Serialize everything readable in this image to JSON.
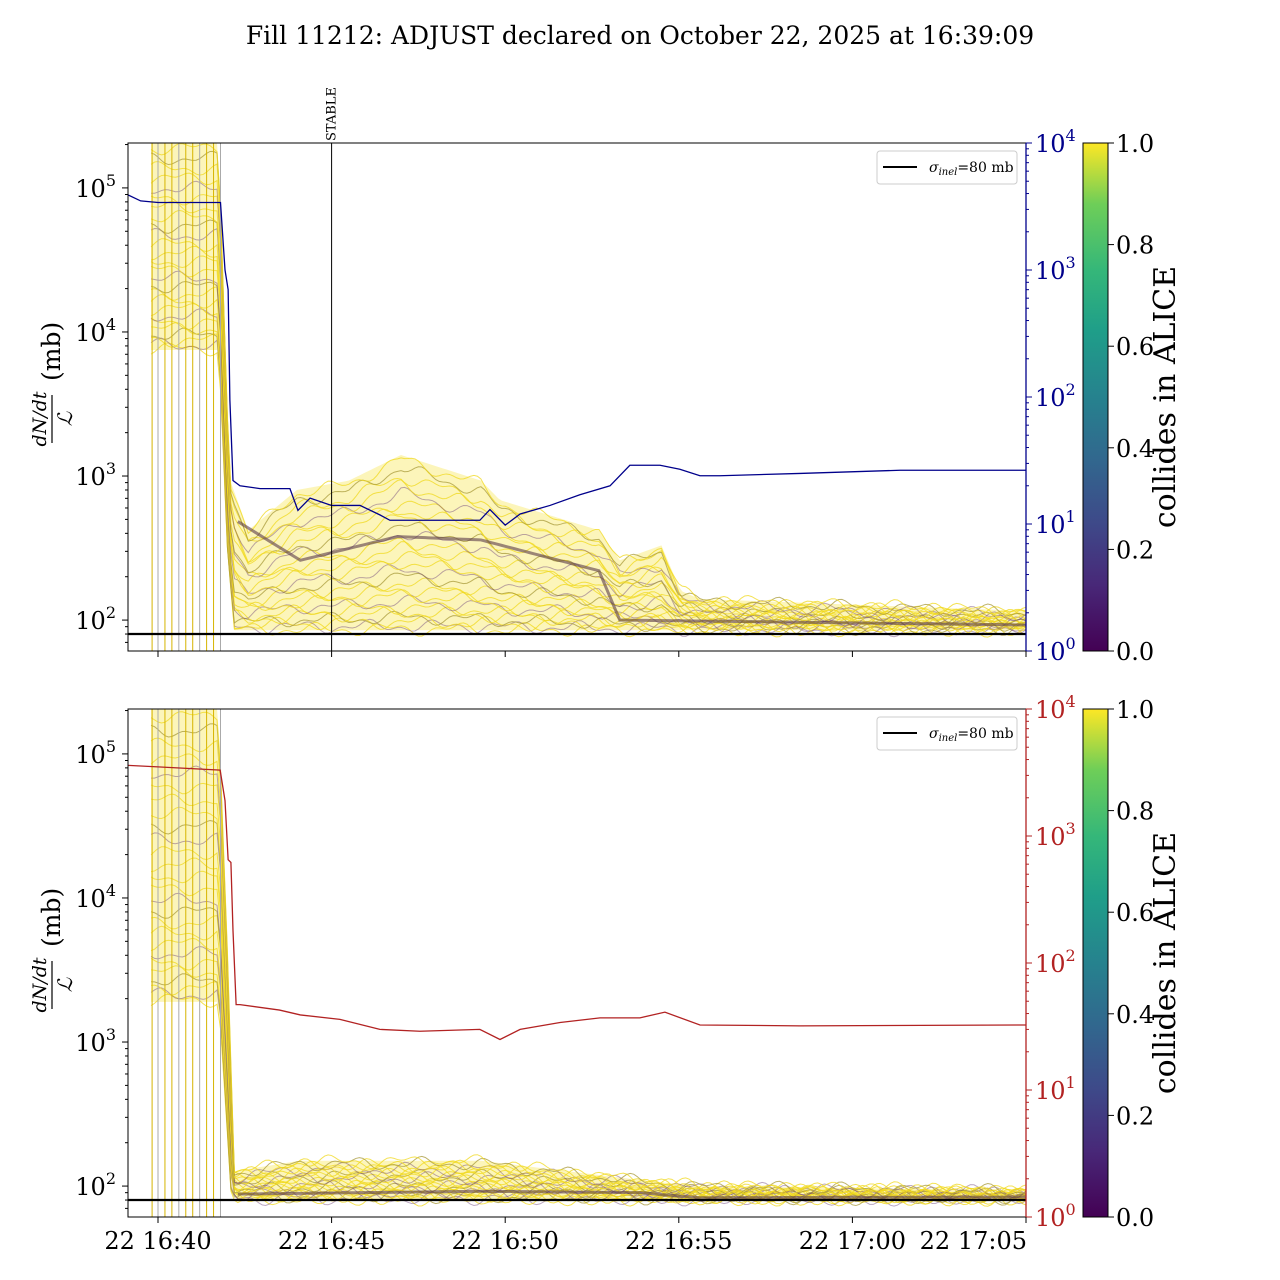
{
  "title": "Fill 11212: ADJUST declared on October 22, 2025 at 16:39:09",
  "chart_data": [
    {
      "type": "line",
      "panel": "top",
      "title": "Fill 11212: ADJUST declared on October 22, 2025 at 16:39:09",
      "x_unit": "minutes after 22 16:40",
      "xlim": [
        -0.86,
        25
      ],
      "xticks": [
        {
          "m": 0,
          "label": "22 16:40"
        },
        {
          "m": 5,
          "label": "22 16:45"
        },
        {
          "m": 10,
          "label": "22 16:50"
        },
        {
          "m": 15,
          "label": "22 16:55"
        },
        {
          "m": 20,
          "label": "22 17:00"
        },
        {
          "m": 25,
          "label": "22 17:05"
        }
      ],
      "ylabel_num": "dN/dt",
      "ylabel_den": "ℒ",
      "ylabel_unit": "(mb)",
      "ylim": [
        61,
        205000
      ],
      "yscale": "log",
      "yticks": [
        {
          "v": 100,
          "label": "10",
          "exp": "2"
        },
        {
          "v": 1000,
          "label": "10",
          "exp": "3"
        },
        {
          "v": 10000,
          "label": "10",
          "exp": "4"
        },
        {
          "v": 100000,
          "label": "10",
          "exp": "5"
        }
      ],
      "y2lim": [
        1,
        10000
      ],
      "y2ticks": [
        {
          "v": 1,
          "label": "10",
          "exp": "0"
        },
        {
          "v": 10,
          "label": "10",
          "exp": "1"
        },
        {
          "v": 100,
          "label": "10",
          "exp": "2"
        },
        {
          "v": 1000,
          "label": "10",
          "exp": "3"
        },
        {
          "v": 10000,
          "label": "10",
          "exp": "4"
        }
      ],
      "y2color": "#00008b",
      "reference_line": {
        "value": 80,
        "legend": "σ",
        "legend_sub": "inel",
        "legend_rest": "=80 mb"
      },
      "annotation": {
        "m": 5,
        "label": "STABLE"
      },
      "legend": "top-right",
      "injection_lines_m": [
        -0.17,
        0,
        0.2,
        0.4,
        0.6,
        0.8,
        1.0,
        1.2,
        1.4,
        1.6,
        1.8
      ],
      "band_upper": [
        [
          -0.2,
          205000
        ],
        [
          1.75,
          205000
        ],
        [
          2.0,
          3000
        ],
        [
          2.1,
          900
        ],
        [
          2.6,
          420
        ],
        [
          4.0,
          800
        ],
        [
          5.5,
          930
        ],
        [
          7.0,
          1400
        ],
        [
          9.3,
          930
        ],
        [
          9.85,
          680
        ],
        [
          12.7,
          420
        ],
        [
          13.3,
          260
        ],
        [
          14.5,
          330
        ],
        [
          15.05,
          160
        ],
        [
          15.6,
          140
        ],
        [
          25.8,
          114
        ]
      ],
      "band_lower": [
        [
          -0.2,
          7500
        ],
        [
          1.75,
          7500
        ],
        [
          2.0,
          300
        ],
        [
          2.2,
          85
        ],
        [
          25.8,
          85
        ]
      ],
      "band_dark": [
        [
          2.2,
          500
        ],
        [
          4.1,
          260
        ],
        [
          6.9,
          380
        ],
        [
          9.3,
          360
        ],
        [
          12.7,
          220
        ],
        [
          13.3,
          100
        ],
        [
          25.8,
          92
        ]
      ],
      "series_right": {
        "name": "right-axis",
        "color": "#00008b",
        "points": [
          [
            -0.86,
            3900
          ],
          [
            -0.5,
            3500
          ],
          [
            0,
            3400
          ],
          [
            1.8,
            3400
          ],
          [
            1.93,
            1000
          ],
          [
            2.02,
            700
          ],
          [
            2.07,
            95
          ],
          [
            2.16,
            22
          ],
          [
            2.36,
            20
          ],
          [
            2.94,
            19
          ],
          [
            3.8,
            19
          ],
          [
            4.03,
            12.8
          ],
          [
            4.38,
            16
          ],
          [
            5.0,
            14
          ],
          [
            5.82,
            14
          ],
          [
            6.39,
            11.8
          ],
          [
            6.68,
            10.7
          ],
          [
            7.83,
            10.7
          ],
          [
            9.27,
            10.7
          ],
          [
            9.56,
            13
          ],
          [
            10.0,
            9.8
          ],
          [
            10.43,
            12
          ],
          [
            11.29,
            14
          ],
          [
            12.15,
            17
          ],
          [
            13.02,
            20
          ],
          [
            13.59,
            29
          ],
          [
            14.46,
            29
          ],
          [
            15.03,
            27
          ],
          [
            15.61,
            24
          ],
          [
            16.18,
            24
          ],
          [
            18.49,
            25
          ],
          [
            21.37,
            26.5
          ],
          [
            25.0,
            26.5
          ]
        ]
      },
      "colorbar": {
        "label": "collides in ALICE",
        "ticks": [
          "0.0",
          "0.2",
          "0.4",
          "0.6",
          "0.8",
          "1.0"
        ]
      }
    },
    {
      "type": "line",
      "panel": "bottom",
      "x_unit": "minutes after 22 16:40",
      "xlim": [
        -0.86,
        25
      ],
      "xticks": [
        {
          "m": 0,
          "label": "22 16:40"
        },
        {
          "m": 5,
          "label": "22 16:45"
        },
        {
          "m": 10,
          "label": "22 16:50"
        },
        {
          "m": 15,
          "label": "22 16:55"
        },
        {
          "m": 20,
          "label": "22 17:00"
        },
        {
          "m": 25,
          "label": "22 17:05"
        }
      ],
      "ylabel_num": "dN/dt",
      "ylabel_den": "ℒ",
      "ylabel_unit": "(mb)",
      "ylim": [
        61,
        205000
      ],
      "yscale": "log",
      "yticks": [
        {
          "v": 100,
          "label": "10",
          "exp": "2"
        },
        {
          "v": 1000,
          "label": "10",
          "exp": "3"
        },
        {
          "v": 10000,
          "label": "10",
          "exp": "4"
        },
        {
          "v": 100000,
          "label": "10",
          "exp": "5"
        }
      ],
      "y2lim": [
        1,
        10000
      ],
      "y2ticks": [
        {
          "v": 1,
          "label": "10",
          "exp": "0"
        },
        {
          "v": 10,
          "label": "10",
          "exp": "1"
        },
        {
          "v": 100,
          "label": "10",
          "exp": "2"
        },
        {
          "v": 1000,
          "label": "10",
          "exp": "3"
        },
        {
          "v": 10000,
          "label": "10",
          "exp": "4"
        }
      ],
      "y2color": "#b22222",
      "reference_line": {
        "value": 80,
        "legend": "σ",
        "legend_sub": "inel",
        "legend_rest": "=80 mb"
      },
      "legend": "top-right",
      "injection_lines_m": [
        -0.17,
        0,
        0.2,
        0.4,
        0.6,
        0.8,
        1.0,
        1.2,
        1.4,
        1.6,
        1.8
      ],
      "band_upper": [
        [
          -0.2,
          205000
        ],
        [
          1.75,
          205000
        ],
        [
          2.0,
          5000
        ],
        [
          2.2,
          127
        ],
        [
          4.1,
          150
        ],
        [
          9.3,
          150
        ],
        [
          13.9,
          110
        ],
        [
          15.6,
          100
        ],
        [
          25.8,
          93
        ]
      ],
      "band_lower": [
        [
          -0.2,
          1900
        ],
        [
          1.75,
          1900
        ],
        [
          2.1,
          90
        ],
        [
          2.3,
          81
        ],
        [
          25.8,
          81
        ]
      ],
      "band_dark": [
        [
          2.3,
          88
        ],
        [
          9.3,
          92
        ],
        [
          13.9,
          90
        ],
        [
          15.6,
          83
        ],
        [
          25.8,
          84
        ]
      ],
      "series_right": {
        "name": "right-axis",
        "color": "#b22222",
        "points": [
          [
            -0.86,
            3600
          ],
          [
            0,
            3500
          ],
          [
            1.79,
            3300
          ],
          [
            1.93,
            1900
          ],
          [
            2.02,
            650
          ],
          [
            2.1,
            620
          ],
          [
            2.16,
            180
          ],
          [
            2.25,
            47
          ],
          [
            2.36,
            47
          ],
          [
            3.5,
            42.6
          ],
          [
            4.1,
            39
          ],
          [
            5.24,
            36
          ],
          [
            6.39,
            30
          ],
          [
            7.54,
            29
          ],
          [
            9.27,
            30
          ],
          [
            9.85,
            25
          ],
          [
            10.43,
            30
          ],
          [
            11.58,
            34
          ],
          [
            12.73,
            37
          ],
          [
            13.88,
            37
          ],
          [
            14.6,
            41
          ],
          [
            15.61,
            32.5
          ],
          [
            18.49,
            32
          ],
          [
            25.0,
            32.5
          ]
        ]
      },
      "colorbar": {
        "label": "collides in ALICE",
        "ticks": [
          "0.0",
          "0.2",
          "0.4",
          "0.6",
          "0.8",
          "1.0"
        ]
      }
    }
  ]
}
